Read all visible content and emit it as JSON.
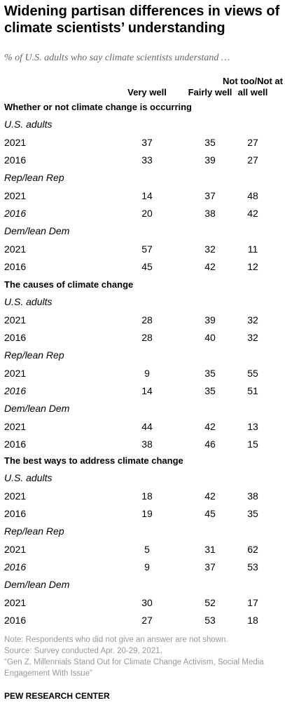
{
  "chart_data": {
    "type": "table",
    "title": "Widening partisan differences in views of climate scientists’ understanding",
    "subtitle": "% of U.S. adults who say climate scientists understand …",
    "columns": [
      "Very well",
      "Fairly well",
      "Not too/Not at all well"
    ],
    "sections": [
      {
        "title": "Whether or not climate change is occurring",
        "groups": [
          {
            "name": "U.S. adults",
            "rows": [
              {
                "year": "2021",
                "italic": false,
                "values": [
                  37,
                  35,
                  27
                ]
              },
              {
                "year": "2016",
                "italic": false,
                "values": [
                  33,
                  39,
                  27
                ]
              }
            ]
          },
          {
            "name": "Rep/lean Rep",
            "rows": [
              {
                "year": "2021",
                "italic": false,
                "values": [
                  14,
                  37,
                  48
                ]
              },
              {
                "year": "2016",
                "italic": true,
                "values": [
                  20,
                  38,
                  42
                ]
              }
            ]
          },
          {
            "name": "Dem/lean Dem",
            "rows": [
              {
                "year": "2021",
                "italic": false,
                "values": [
                  57,
                  32,
                  11
                ]
              },
              {
                "year": "2016",
                "italic": false,
                "values": [
                  45,
                  42,
                  12
                ]
              }
            ]
          }
        ]
      },
      {
        "title": "The causes of climate change",
        "groups": [
          {
            "name": "U.S. adults",
            "rows": [
              {
                "year": "2021",
                "italic": false,
                "values": [
                  28,
                  39,
                  32
                ]
              },
              {
                "year": "2016",
                "italic": false,
                "values": [
                  28,
                  40,
                  32
                ]
              }
            ]
          },
          {
            "name": "Rep/lean Rep",
            "rows": [
              {
                "year": "2021",
                "italic": false,
                "values": [
                  9,
                  35,
                  55
                ]
              },
              {
                "year": "2016",
                "italic": true,
                "values": [
                  14,
                  35,
                  51
                ]
              }
            ]
          },
          {
            "name": "Dem/lean Dem",
            "rows": [
              {
                "year": "2021",
                "italic": false,
                "values": [
                  44,
                  42,
                  13
                ]
              },
              {
                "year": "2016",
                "italic": false,
                "values": [
                  38,
                  46,
                  15
                ]
              }
            ]
          }
        ]
      },
      {
        "title": "The best ways to address climate change",
        "groups": [
          {
            "name": "U.S. adults",
            "rows": [
              {
                "year": "2021",
                "italic": false,
                "values": [
                  18,
                  42,
                  38
                ]
              },
              {
                "year": "2016",
                "italic": false,
                "values": [
                  19,
                  45,
                  35
                ]
              }
            ]
          },
          {
            "name": "Rep/lean Rep",
            "rows": [
              {
                "year": "2021",
                "italic": false,
                "values": [
                  5,
                  31,
                  62
                ]
              },
              {
                "year": "2016",
                "italic": true,
                "values": [
                  9,
                  37,
                  53
                ]
              }
            ]
          },
          {
            "name": "Dem/lean Dem",
            "rows": [
              {
                "year": "2021",
                "italic": false,
                "values": [
                  30,
                  52,
                  17
                ]
              },
              {
                "year": "2016",
                "italic": false,
                "values": [
                  27,
                  53,
                  18
                ]
              }
            ]
          }
        ]
      }
    ]
  },
  "notes": [
    "Note: Respondents who did not give an answer are not shown.",
    "Source: Survey conducted Apr. 20-29, 2021.",
    "“Gen Z, Millennials Stand Out for Climate Change Activism, Social Media Engagement With Issue”"
  ],
  "brand": "PEW RESEARCH CENTER"
}
